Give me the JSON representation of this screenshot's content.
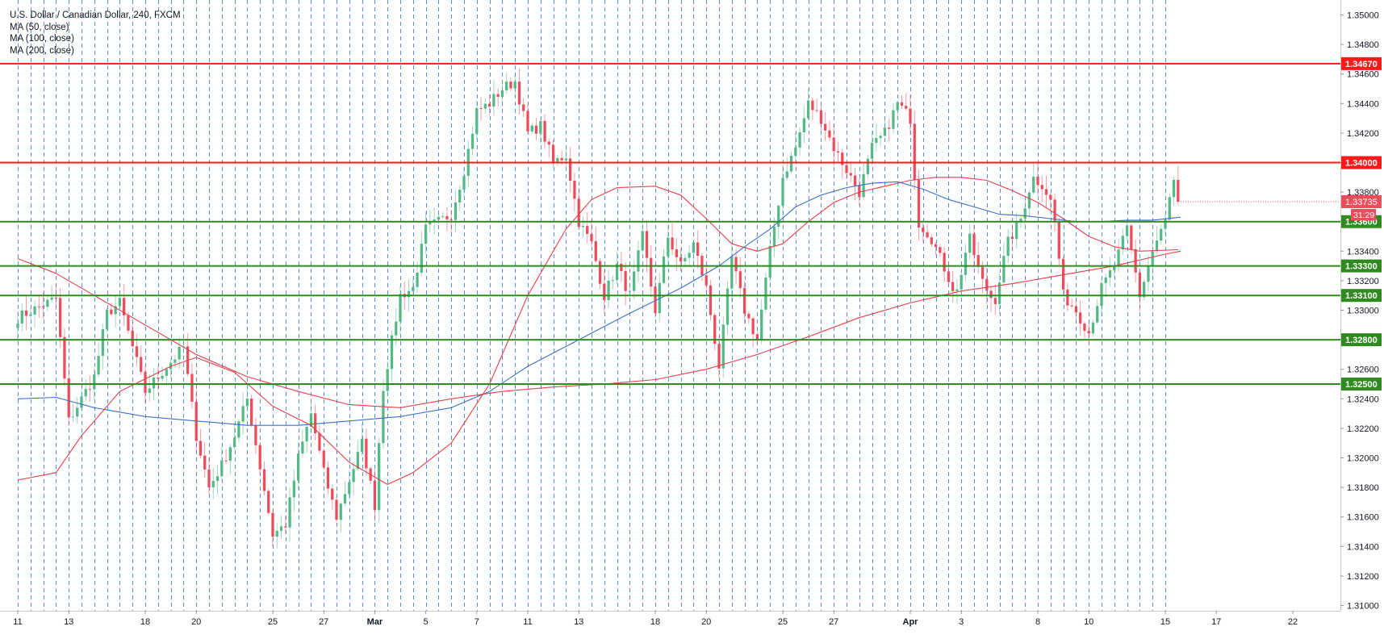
{
  "legend": {
    "title": "U.S. Dollar / Canadian Dollar, 240, FXCM",
    "ma50": "MA (50, close)",
    "ma100": "MA (100, close)",
    "ma200": "MA (200, close)"
  },
  "colors": {
    "up": "#53b987",
    "down": "#eb4d5c",
    "ma50": "#e3404a",
    "ma100": "#3c70c8",
    "ma200": "#e3404a",
    "resistance": "#ff1a1a",
    "support": "#2f8a1f",
    "separator": "#3c7ae0"
  },
  "chart_data": {
    "type": "candlestick",
    "symbol": "U.S. Dollar / Canadian Dollar",
    "timeframe": "240",
    "source": "FXCM",
    "ylim": [
      1.309,
      1.351
    ],
    "y_ticks": [
      "1.35000",
      "1.34800",
      "1.34600",
      "1.34400",
      "1.34200",
      "1.34000",
      "1.33800",
      "1.33600",
      "1.33400",
      "1.33200",
      "1.33000",
      "1.32800",
      "1.32600",
      "1.32400",
      "1.32200",
      "1.32000",
      "1.31800",
      "1.31600",
      "1.31400",
      "1.31200",
      "1.31000"
    ],
    "x_ticks": [
      {
        "label": "11",
        "day": 0
      },
      {
        "label": "13",
        "day": 2
      },
      {
        "label": "18",
        "day": 5
      },
      {
        "label": "20",
        "day": 7
      },
      {
        "label": "25",
        "day": 10
      },
      {
        "label": "27",
        "day": 12
      },
      {
        "label": "Mar",
        "day": 14
      },
      {
        "label": "5",
        "day": 16
      },
      {
        "label": "7",
        "day": 18
      },
      {
        "label": "11",
        "day": 20
      },
      {
        "label": "13",
        "day": 22
      },
      {
        "label": "18",
        "day": 25
      },
      {
        "label": "20",
        "day": 27
      },
      {
        "label": "25",
        "day": 30
      },
      {
        "label": "27",
        "day": 32
      },
      {
        "label": "Apr",
        "day": 35
      },
      {
        "label": "3",
        "day": 37
      },
      {
        "label": "8",
        "day": 40
      },
      {
        "label": "10",
        "day": 42
      },
      {
        "label": "15",
        "day": 45
      },
      {
        "label": "17",
        "day": 47
      },
      {
        "label": "22",
        "day": 50
      }
    ],
    "last_price": "1.33735",
    "countdown": "31:29",
    "resistance_levels": [
      "1.34670",
      "1.34000"
    ],
    "support_levels": [
      "1.33600",
      "1.33300",
      "1.33100",
      "1.32800",
      "1.32500"
    ],
    "waypoints": [
      [
        0,
        1.3295
      ],
      [
        1.5,
        1.3308
      ],
      [
        2,
        1.3225
      ],
      [
        3,
        1.3255
      ],
      [
        3.5,
        1.3298
      ],
      [
        4,
        1.3305
      ],
      [
        5,
        1.3245
      ],
      [
        6,
        1.3265
      ],
      [
        6.5,
        1.3275
      ],
      [
        7,
        1.3215
      ],
      [
        7.5,
        1.318
      ],
      [
        8,
        1.3195
      ],
      [
        8.5,
        1.3215
      ],
      [
        9,
        1.324
      ],
      [
        10,
        1.3148
      ],
      [
        10.5,
        1.3155
      ],
      [
        11,
        1.32
      ],
      [
        11.5,
        1.323
      ],
      [
        12,
        1.319
      ],
      [
        12.5,
        1.316
      ],
      [
        13,
        1.3185
      ],
      [
        13.5,
        1.321
      ],
      [
        14,
        1.3168
      ],
      [
        14.3,
        1.3245
      ],
      [
        15,
        1.331
      ],
      [
        15.5,
        1.3315
      ],
      [
        16,
        1.3355
      ],
      [
        17,
        1.3365
      ],
      [
        17.5,
        1.3395
      ],
      [
        18,
        1.3435
      ],
      [
        18.5,
        1.344
      ],
      [
        19,
        1.345
      ],
      [
        19.5,
        1.3455
      ],
      [
        20,
        1.342
      ],
      [
        20.5,
        1.3425
      ],
      [
        21,
        1.34
      ],
      [
        21.5,
        1.3405
      ],
      [
        22,
        1.336
      ],
      [
        22.5,
        1.3345
      ],
      [
        23,
        1.331
      ],
      [
        23.5,
        1.333
      ],
      [
        24,
        1.331
      ],
      [
        24.5,
        1.335
      ],
      [
        25,
        1.33
      ],
      [
        25.5,
        1.335
      ],
      [
        26,
        1.333
      ],
      [
        26.5,
        1.3345
      ],
      [
        27,
        1.3315
      ],
      [
        27.5,
        1.3262
      ],
      [
        28,
        1.3335
      ],
      [
        28.5,
        1.33
      ],
      [
        29,
        1.328
      ],
      [
        29.5,
        1.334
      ],
      [
        30,
        1.339
      ],
      [
        30.5,
        1.341
      ],
      [
        31,
        1.344
      ],
      [
        31.5,
        1.343
      ],
      [
        32,
        1.341
      ],
      [
        32.5,
        1.3395
      ],
      [
        33,
        1.338
      ],
      [
        33.5,
        1.341
      ],
      [
        34,
        1.342
      ],
      [
        34.5,
        1.344
      ],
      [
        35,
        1.343
      ],
      [
        35.3,
        1.336
      ],
      [
        35.8,
        1.335
      ],
      [
        36.3,
        1.333
      ],
      [
        36.8,
        1.331
      ],
      [
        37.3,
        1.335
      ],
      [
        37.8,
        1.332
      ],
      [
        38.3,
        1.3305
      ],
      [
        38.8,
        1.3345
      ],
      [
        39.3,
        1.336
      ],
      [
        39.8,
        1.339
      ],
      [
        40.2,
        1.3385
      ],
      [
        40.6,
        1.337
      ],
      [
        41,
        1.331
      ],
      [
        41.5,
        1.33
      ],
      [
        42,
        1.3285
      ],
      [
        42.5,
        1.3315
      ],
      [
        43,
        1.333
      ],
      [
        43.5,
        1.3355
      ],
      [
        44,
        1.331
      ],
      [
        44.5,
        1.334
      ],
      [
        45,
        1.336
      ],
      [
        45.3,
        1.3388
      ],
      [
        45.6,
        1.3374
      ]
    ],
    "series": [
      {
        "name": "MA (50, close)",
        "points": [
          [
            0,
            1.3185
          ],
          [
            1.5,
            1.319
          ],
          [
            2.5,
            1.3215
          ],
          [
            4,
            1.3245
          ],
          [
            6,
            1.3262
          ],
          [
            7,
            1.3268
          ],
          [
            8.5,
            1.3258
          ],
          [
            10,
            1.3235
          ],
          [
            11.5,
            1.3222
          ],
          [
            13,
            1.3197
          ],
          [
            14.5,
            1.3182
          ],
          [
            15.5,
            1.319
          ],
          [
            17,
            1.321
          ],
          [
            18.5,
            1.325
          ],
          [
            20,
            1.331
          ],
          [
            21.5,
            1.3355
          ],
          [
            22.5,
            1.3375
          ],
          [
            23.5,
            1.3383
          ],
          [
            25,
            1.3384
          ],
          [
            26,
            1.3378
          ],
          [
            27,
            1.3362
          ],
          [
            28,
            1.3345
          ],
          [
            29,
            1.334
          ],
          [
            30,
            1.3345
          ],
          [
            31,
            1.336
          ],
          [
            32,
            1.3373
          ],
          [
            33,
            1.338
          ],
          [
            34,
            1.3384
          ],
          [
            35,
            1.3388
          ],
          [
            36,
            1.339
          ],
          [
            37,
            1.339
          ],
          [
            38,
            1.3388
          ],
          [
            39,
            1.3381
          ],
          [
            40,
            1.3373
          ],
          [
            41,
            1.3362
          ],
          [
            42,
            1.335
          ],
          [
            43,
            1.3343
          ],
          [
            44,
            1.334
          ],
          [
            45.5,
            1.3341
          ]
        ]
      },
      {
        "name": "MA (100, close)",
        "points": [
          [
            0,
            1.324
          ],
          [
            1.5,
            1.3241
          ],
          [
            3,
            1.3234
          ],
          [
            5,
            1.3228
          ],
          [
            7,
            1.3225
          ],
          [
            9,
            1.3222
          ],
          [
            11,
            1.3222
          ],
          [
            13,
            1.3225
          ],
          [
            15,
            1.3228
          ],
          [
            17,
            1.3234
          ],
          [
            18.5,
            1.3245
          ],
          [
            20,
            1.3262
          ],
          [
            22,
            1.328
          ],
          [
            24,
            1.3298
          ],
          [
            26,
            1.3315
          ],
          [
            27.5,
            1.333
          ],
          [
            28.5,
            1.3343
          ],
          [
            29.5,
            1.3355
          ],
          [
            30.5,
            1.337
          ],
          [
            31.5,
            1.3378
          ],
          [
            32.5,
            1.3383
          ],
          [
            33.5,
            1.3386
          ],
          [
            34.5,
            1.3387
          ],
          [
            35.5,
            1.3382
          ],
          [
            36.5,
            1.3375
          ],
          [
            37.5,
            1.337
          ],
          [
            38.5,
            1.3365
          ],
          [
            39.5,
            1.3364
          ],
          [
            40.5,
            1.3362
          ],
          [
            41.5,
            1.336
          ],
          [
            42.5,
            1.336
          ],
          [
            43.5,
            1.3361
          ],
          [
            44.5,
            1.3361
          ],
          [
            45.6,
            1.3363
          ]
        ]
      },
      {
        "name": "MA (200, close)",
        "points": [
          [
            0,
            1.3335
          ],
          [
            1.5,
            1.3325
          ],
          [
            3,
            1.331
          ],
          [
            5,
            1.329
          ],
          [
            7,
            1.327
          ],
          [
            9,
            1.3255
          ],
          [
            11,
            1.3245
          ],
          [
            13,
            1.3236
          ],
          [
            15,
            1.3234
          ],
          [
            17,
            1.324
          ],
          [
            19,
            1.3245
          ],
          [
            21,
            1.3248
          ],
          [
            23,
            1.325
          ],
          [
            25,
            1.3253
          ],
          [
            27,
            1.326
          ],
          [
            29,
            1.327
          ],
          [
            31,
            1.3282
          ],
          [
            33,
            1.3295
          ],
          [
            35,
            1.3305
          ],
          [
            37,
            1.3313
          ],
          [
            39,
            1.3318
          ],
          [
            41,
            1.3324
          ],
          [
            43,
            1.333
          ],
          [
            45,
            1.3338
          ],
          [
            45.6,
            1.334
          ]
        ]
      }
    ]
  }
}
